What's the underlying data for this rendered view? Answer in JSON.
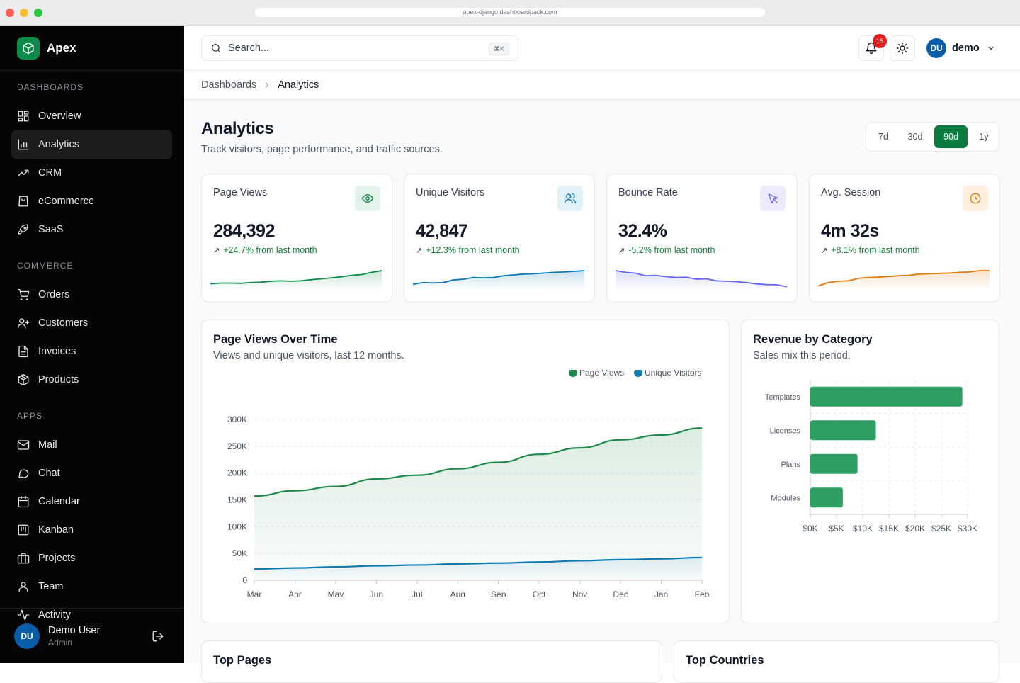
{
  "browser": {
    "url": "apex-django.dashboardpack.com"
  },
  "app": {
    "name": "Apex"
  },
  "sidebar": {
    "sections": [
      {
        "label": "DASHBOARDS",
        "items": [
          {
            "label": "Overview",
            "icon": "grid-icon"
          },
          {
            "label": "Analytics",
            "icon": "bar-chart-icon",
            "active": true
          },
          {
            "label": "CRM",
            "icon": "trending-up-icon"
          },
          {
            "label": "eCommerce",
            "icon": "shopping-bag-icon"
          },
          {
            "label": "SaaS",
            "icon": "rocket-icon"
          }
        ]
      },
      {
        "label": "COMMERCE",
        "items": [
          {
            "label": "Orders",
            "icon": "cart-icon"
          },
          {
            "label": "Customers",
            "icon": "user-plus-icon"
          },
          {
            "label": "Invoices",
            "icon": "file-icon"
          },
          {
            "label": "Products",
            "icon": "box-icon"
          }
        ]
      },
      {
        "label": "APPS",
        "items": [
          {
            "label": "Mail",
            "icon": "mail-icon"
          },
          {
            "label": "Chat",
            "icon": "chat-icon"
          },
          {
            "label": "Calendar",
            "icon": "calendar-icon"
          },
          {
            "label": "Kanban",
            "icon": "kanban-icon"
          },
          {
            "label": "Projects",
            "icon": "briefcase-icon"
          },
          {
            "label": "Team",
            "icon": "user-icon"
          },
          {
            "label": "Activity",
            "icon": "activity-icon"
          }
        ]
      }
    ],
    "user": {
      "initials": "DU",
      "name": "Demo User",
      "role": "Admin"
    }
  },
  "topbar": {
    "search_placeholder": "Search...",
    "search_shortcut": "⌘K",
    "notifications_count": "15",
    "user_initials": "DU",
    "user_name": "demo"
  },
  "breadcrumb": {
    "parent": "Dashboards",
    "current": "Analytics"
  },
  "page": {
    "title": "Analytics",
    "subtitle": "Track visitors, page performance, and traffic sources.",
    "ranges": [
      "7d",
      "30d",
      "90d",
      "1y"
    ],
    "active_range": "90d"
  },
  "kpis": [
    {
      "label": "Page Views",
      "value": "284,392",
      "delta": "+24.7% from last month",
      "icon": "eye-icon",
      "color": "#0b8a4a",
      "spark": [
        0.23,
        0.27,
        0.27,
        0.26,
        0.3,
        0.32,
        0.38,
        0.4,
        0.38,
        0.4,
        0.47,
        0.52,
        0.58,
        0.64,
        0.72,
        0.77,
        0.9,
        1.0
      ]
    },
    {
      "label": "Unique Visitors",
      "value": "42,847",
      "delta": "+12.3% from last month",
      "icon": "users-icon",
      "color": "#0879b6",
      "spark": [
        0.2,
        0.3,
        0.28,
        0.3,
        0.45,
        0.5,
        0.6,
        0.58,
        0.6,
        0.7,
        0.75,
        0.8,
        0.82,
        0.86,
        0.9,
        0.92,
        0.96,
        1.0
      ]
    },
    {
      "label": "Bounce Rate",
      "value": "32.4%",
      "delta": "-5.2% from last month",
      "icon": "cursor-icon",
      "color": "#6366f1",
      "spark": [
        1.0,
        0.9,
        0.85,
        0.7,
        0.72,
        0.65,
        0.6,
        0.62,
        0.5,
        0.52,
        0.4,
        0.38,
        0.35,
        0.3,
        0.22,
        0.18,
        0.17,
        0.05
      ]
    },
    {
      "label": "Avg. Session",
      "value": "4m 32s",
      "delta": "+8.1% from last month",
      "icon": "clock-icon",
      "color": "#e07a0b",
      "spark": [
        0.1,
        0.3,
        0.38,
        0.4,
        0.55,
        0.6,
        0.62,
        0.66,
        0.7,
        0.72,
        0.8,
        0.82,
        0.84,
        0.86,
        0.9,
        0.92,
        1.0,
        1.0
      ]
    }
  ],
  "page_views_chart": {
    "title": "Page Views Over Time",
    "subtitle": "Views and unique visitors, last 12 months.",
    "chart_data": {
      "type": "area",
      "categories": [
        "Mar",
        "Apr",
        "May",
        "Jun",
        "Jul",
        "Aug",
        "Sep",
        "Oct",
        "Nov",
        "Dec",
        "Jan",
        "Feb"
      ],
      "y_ticks": [
        "0",
        "50K",
        "100K",
        "150K",
        "200K",
        "250K",
        "300K"
      ],
      "ylim": [
        0,
        300000
      ],
      "legend_position": "top-right",
      "series": [
        {
          "name": "Page Views",
          "color": "#1f8a4c",
          "values": [
            157000,
            167000,
            175000,
            189000,
            196000,
            208000,
            220000,
            235000,
            247000,
            262000,
            271000,
            284000
          ]
        },
        {
          "name": "Unique Visitors",
          "color": "#0f7bb0",
          "values": [
            21000,
            23000,
            25000,
            27000,
            28500,
            30500,
            32000,
            34000,
            36500,
            38500,
            40000,
            42500
          ]
        }
      ]
    }
  },
  "revenue_chart": {
    "title": "Revenue by Category",
    "subtitle": "Sales mix this period.",
    "chart_data": {
      "type": "bar",
      "orientation": "horizontal",
      "categories": [
        "Templates",
        "Licenses",
        "Plans",
        "Modules"
      ],
      "values": [
        29000,
        12500,
        9000,
        6200
      ],
      "x_ticks": [
        "$0K",
        "$5K",
        "$10K",
        "$15K",
        "$20K",
        "$25K",
        "$30K"
      ],
      "xlim": [
        0,
        30000
      ],
      "color": "#2f9e63"
    }
  },
  "bottom": {
    "left_title": "Top Pages",
    "right_title": "Top Countries"
  }
}
